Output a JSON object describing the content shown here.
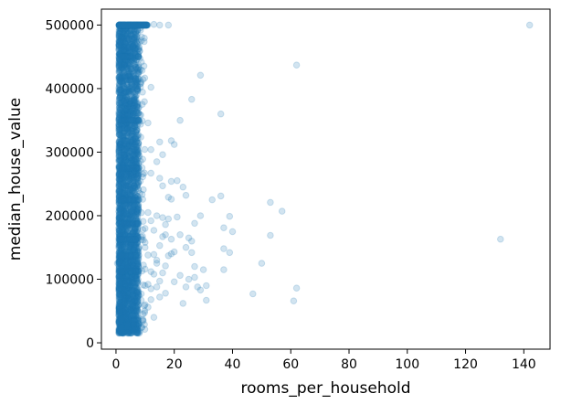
{
  "chart_data": {
    "type": "scatter",
    "title": "",
    "xlabel": "rooms_per_household",
    "ylabel": "median_house_value",
    "xlim": [
      -5,
      149
    ],
    "ylim": [
      -10000,
      525000
    ],
    "xticks": [
      0,
      20,
      40,
      60,
      80,
      100,
      120,
      140
    ],
    "yticks": [
      0,
      100000,
      200000,
      300000,
      400000,
      500000
    ],
    "grid": false,
    "legend": "none",
    "marker_color": "#1f77b4",
    "marker_alpha": 0.2,
    "dense_band": {
      "x_range": [
        1,
        10
      ],
      "y_range": [
        15000,
        500001
      ],
      "approx_point_count": 20000
    },
    "capped_row": {
      "y": 500001,
      "x_range": [
        1,
        11
      ]
    },
    "points": [
      [
        142,
        500001
      ],
      [
        132,
        163000
      ],
      [
        62,
        437000
      ],
      [
        61,
        66000
      ],
      [
        62,
        86000
      ],
      [
        57,
        207000
      ],
      [
        53,
        221000
      ],
      [
        53,
        169000
      ],
      [
        50,
        125000
      ],
      [
        47,
        77000
      ],
      [
        40,
        175000
      ],
      [
        39,
        199000
      ],
      [
        39,
        142000
      ],
      [
        36,
        231000
      ],
      [
        36,
        360000
      ],
      [
        37,
        181000
      ],
      [
        37,
        148000
      ],
      [
        37,
        115000
      ],
      [
        33,
        225000
      ],
      [
        31,
        90000
      ],
      [
        31,
        67000
      ],
      [
        29,
        421000
      ],
      [
        29,
        200000
      ],
      [
        29,
        83000
      ],
      [
        28,
        88000
      ],
      [
        27,
        103000
      ],
      [
        27,
        188000
      ],
      [
        26,
        142000
      ],
      [
        26,
        383000
      ],
      [
        25,
        165000
      ],
      [
        24,
        232000
      ],
      [
        24,
        88000
      ],
      [
        23,
        245000
      ],
      [
        22,
        350000
      ],
      [
        22,
        106000
      ],
      [
        21,
        198000
      ],
      [
        20,
        312000
      ],
      [
        20,
        96000
      ],
      [
        19,
        318000
      ],
      [
        19,
        254000
      ],
      [
        19,
        226000
      ],
      [
        19,
        163000
      ],
      [
        18,
        500001
      ],
      [
        18,
        229000
      ],
      [
        18,
        137000
      ],
      [
        17,
        186000
      ],
      [
        17,
        121000
      ],
      [
        17,
        78000
      ],
      [
        16,
        296000
      ],
      [
        16,
        247000
      ],
      [
        16,
        197000
      ],
      [
        16,
        167000
      ],
      [
        15,
        500001
      ],
      [
        15,
        316000
      ],
      [
        15,
        259000
      ],
      [
        15,
        153000
      ],
      [
        15,
        97000
      ],
      [
        15,
        72000
      ],
      [
        14,
        200000
      ],
      [
        14,
        130000
      ],
      [
        14,
        125000
      ],
      [
        13,
        501000
      ],
      [
        13,
        177000
      ],
      [
        13,
        139000
      ],
      [
        13,
        40000
      ],
      [
        12,
        402000
      ],
      [
        12,
        304000
      ],
      [
        12,
        267000
      ],
      [
        12,
        192000
      ],
      [
        12,
        112000
      ],
      [
        12,
        85000
      ],
      [
        11,
        346000
      ],
      [
        11,
        138000
      ],
      [
        11,
        56000
      ],
      [
        11,
        92000
      ],
      [
        10,
        158000
      ],
      [
        10,
        116000
      ],
      [
        10,
        180000
      ],
      [
        10,
        150000
      ],
      [
        10,
        90000
      ],
      [
        4,
        15000
      ],
      [
        8,
        15000
      ],
      [
        2,
        22000
      ],
      [
        6,
        30000
      ],
      [
        10,
        60000
      ],
      [
        3,
        450000
      ],
      [
        1,
        275000
      ],
      [
        0.5,
        125000
      ],
      [
        1,
        350000
      ],
      [
        2,
        110000
      ],
      [
        3,
        380000
      ],
      [
        14,
        88000
      ],
      [
        16,
        110000
      ],
      [
        18,
        195000
      ],
      [
        20,
        143000
      ],
      [
        22,
        170000
      ],
      [
        25,
        100000
      ],
      [
        27,
        120000
      ],
      [
        23,
        62000
      ],
      [
        30,
        115000
      ],
      [
        21,
        255000
      ],
      [
        12,
        68000
      ],
      [
        13,
        108000
      ],
      [
        17,
        170000
      ],
      [
        19,
        140000
      ],
      [
        24,
        150000
      ],
      [
        26,
        160000
      ],
      [
        11,
        205000
      ],
      [
        14,
        285000
      ]
    ]
  }
}
